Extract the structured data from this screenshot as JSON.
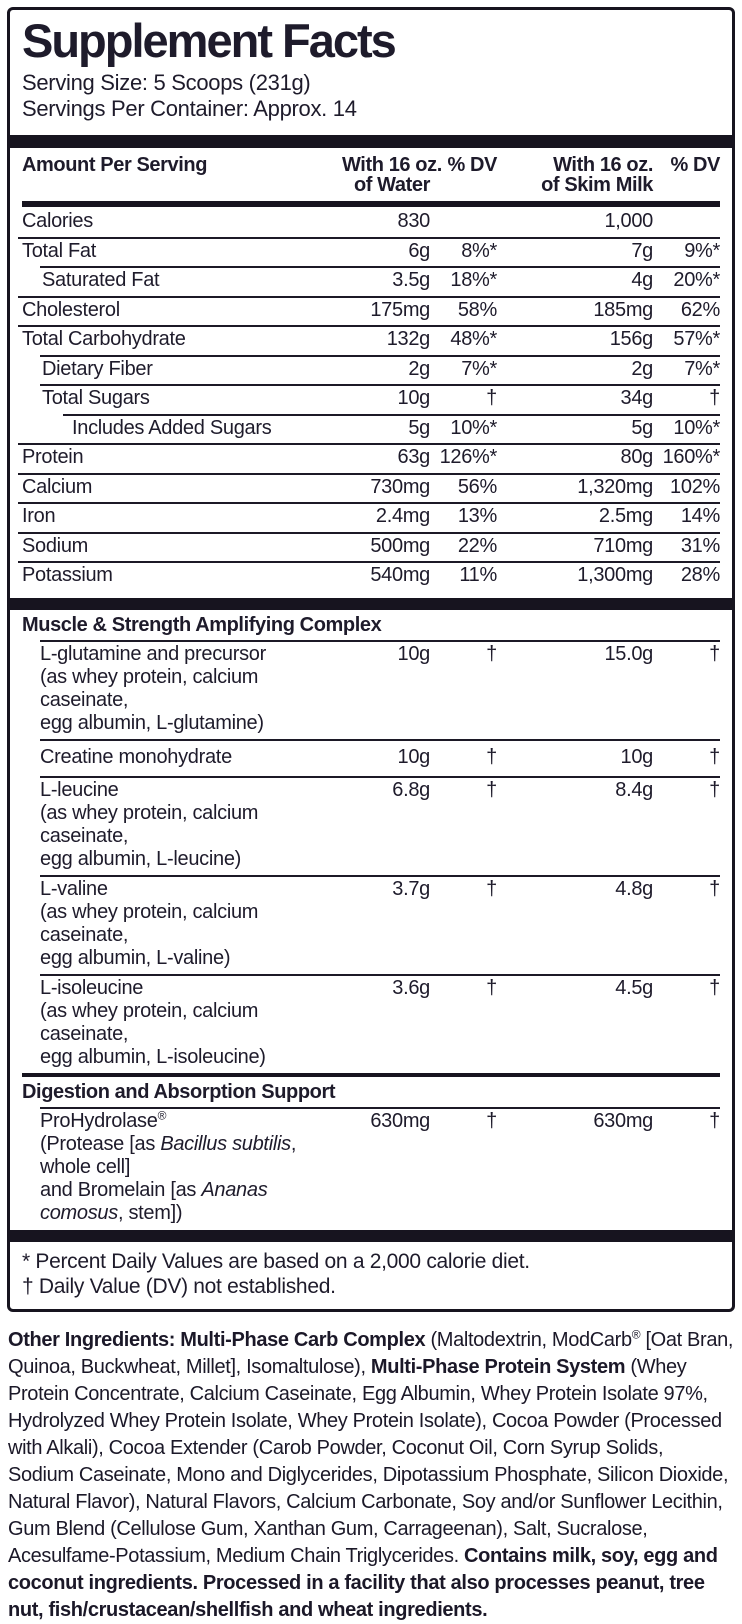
{
  "label": {
    "title": "Supplement Facts",
    "serving_size": "Serving Size: 5 Scoops (231g)",
    "servings_per_container": "Servings Per Container: Approx. 14",
    "columns": {
      "amount_per_serving": "Amount Per Serving",
      "water_line1": "With 16 oz.",
      "water_line2": "of Water",
      "dv": "% DV",
      "milk_line1": "With 16 oz.",
      "milk_line2": "of Skim Milk"
    },
    "main_rows": [
      {
        "name": "Calories",
        "indent": 0,
        "rule": null,
        "water_amount": "830",
        "water_dv": "",
        "milk_amount": "1,000",
        "milk_dv": ""
      },
      {
        "name": "Total Fat",
        "indent": 0,
        "rule": 0,
        "water_amount": "6g",
        "water_dv": "8%*",
        "milk_amount": "7g",
        "milk_dv": "9%*"
      },
      {
        "name": "Saturated Fat",
        "indent": 1,
        "rule": 1,
        "water_amount": "3.5g",
        "water_dv": "18%*",
        "milk_amount": "4g",
        "milk_dv": "20%*"
      },
      {
        "name": "Cholesterol",
        "indent": 0,
        "rule": 0,
        "water_amount": "175mg",
        "water_dv": "58%",
        "milk_amount": "185mg",
        "milk_dv": "62%"
      },
      {
        "name": "Total Carbohydrate",
        "indent": 0,
        "rule": 0,
        "water_amount": "132g",
        "water_dv": "48%*",
        "milk_amount": "156g",
        "milk_dv": "57%*"
      },
      {
        "name": "Dietary Fiber",
        "indent": 1,
        "rule": 1,
        "water_amount": "2g",
        "water_dv": "7%*",
        "milk_amount": "2g",
        "milk_dv": "7%*"
      },
      {
        "name": "Total Sugars",
        "indent": 1,
        "rule": 1,
        "water_amount": "10g",
        "water_dv": "†",
        "milk_amount": "34g",
        "milk_dv": "†"
      },
      {
        "name": "Includes Added Sugars",
        "indent": 2,
        "rule": 2,
        "water_amount": "5g",
        "water_dv": "10%*",
        "milk_amount": "5g",
        "milk_dv": "10%*"
      },
      {
        "name": "Protein",
        "indent": 0,
        "rule": 0,
        "water_amount": "63g",
        "water_dv": "126%*",
        "milk_amount": "80g",
        "milk_dv": "160%*"
      },
      {
        "name": "Calcium",
        "indent": 0,
        "rule": 0,
        "water_amount": "730mg",
        "water_dv": "56%",
        "milk_amount": "1,320mg",
        "milk_dv": "102%"
      },
      {
        "name": "Iron",
        "indent": 0,
        "rule": 0,
        "water_amount": "2.4mg",
        "water_dv": "13%",
        "milk_amount": "2.5mg",
        "milk_dv": "14%"
      },
      {
        "name": "Sodium",
        "indent": 0,
        "rule": 0,
        "water_amount": "500mg",
        "water_dv": "22%",
        "milk_amount": "710mg",
        "milk_dv": "31%"
      },
      {
        "name": "Potassium",
        "indent": 0,
        "rule": 0,
        "water_amount": "540mg",
        "water_dv": "11%",
        "milk_amount": "1,300mg",
        "milk_dv": "28%"
      }
    ],
    "sections": [
      {
        "heading": "Muscle & Strength Amplifying Complex",
        "rows": [
          {
            "name": "L-glutamine and precursor",
            "sub": [
              "(as whey protein, calcium caseinate,",
              "egg albumin, L-glutamine)"
            ],
            "water_amount": "10g",
            "water_dv": "†",
            "milk_amount": "15.0g",
            "milk_dv": "†"
          },
          {
            "name": "Creatine monohydrate",
            "sub": [],
            "water_amount": "10g",
            "water_dv": "†",
            "milk_amount": "10g",
            "milk_dv": "†"
          },
          {
            "name": "L-leucine",
            "sub": [
              "(as whey protein, calcium caseinate,",
              "egg albumin, L-leucine)"
            ],
            "water_amount": "6.8g",
            "water_dv": "†",
            "milk_amount": "8.4g",
            "milk_dv": "†"
          },
          {
            "name": "L-valine",
            "sub": [
              "(as whey protein, calcium caseinate,",
              "egg albumin, L-valine)"
            ],
            "water_amount": "3.7g",
            "water_dv": "†",
            "milk_amount": "4.8g",
            "milk_dv": "†"
          },
          {
            "name": "L-isoleucine",
            "sub": [
              "(as whey protein, calcium caseinate,",
              "egg albumin, L-isoleucine)"
            ],
            "water_amount": "3.6g",
            "water_dv": "†",
            "milk_amount": "4.5g",
            "milk_dv": "†"
          }
        ]
      },
      {
        "heading": "Digestion and Absorption Support",
        "rows": [
          {
            "name": [
              {
                "t": "ProHydrolase"
              },
              {
                "t": "®",
                "s": 1
              }
            ],
            "sub": [
              [
                {
                  "t": "(Protease [as "
                },
                {
                  "t": "Bacillus subtilis",
                  "i": 1
                },
                {
                  "t": ", whole cell]"
                }
              ],
              [
                {
                  "t": "and Bromelain [as "
                },
                {
                  "t": "Ananas comosus",
                  "i": 1
                },
                {
                  "t": ", stem])"
                }
              ]
            ],
            "water_amount": "630mg",
            "water_dv": "†",
            "milk_amount": "630mg",
            "milk_dv": "†"
          }
        ]
      }
    ],
    "footnotes": [
      "* Percent Daily Values are based on a 2,000 calorie diet.",
      "† Daily Value (DV) not established."
    ]
  },
  "other_ingredients": {
    "segments": [
      {
        "t": "Other Ingredients: Multi-Phase Carb Complex",
        "b": 1
      },
      {
        "t": " (Maltodextrin, ModCarb"
      },
      {
        "t": "®",
        "s": 1
      },
      {
        "t": " [Oat Bran, Quinoa, Buckwheat, Millet], Isomaltulose), "
      },
      {
        "t": "Multi-Phase Protein System",
        "b": 1
      },
      {
        "t": " (Whey Protein Concentrate, Calcium Caseinate, Egg Albumin, Whey Protein Isolate 97%, Hydrolyzed Whey Protein Isolate, Whey Protein Isolate), Cocoa Powder (Processed with Alkali), Cocoa Extender (Carob Powder, Coconut Oil, Corn Syrup Solids, Sodium Caseinate, Mono and Diglycerides, Dipotassium Phosphate, Silicon Dioxide, Natural Flavor), Natural Flavors, Calcium Carbonate, Soy and/or Sunflower Lecithin, Gum Blend (Cellulose Gum, Xanthan Gum, Carrageenan), Salt, Sucralose, Acesulfame-Potassium, Medium Chain Triglycerides. "
      },
      {
        "t": "Contains milk, soy, egg and coconut ingredients. Processed in a facility that also processes peanut, tree nut, fish/crustacean/shellfish and wheat ingredients.",
        "b": 1
      }
    ]
  }
}
